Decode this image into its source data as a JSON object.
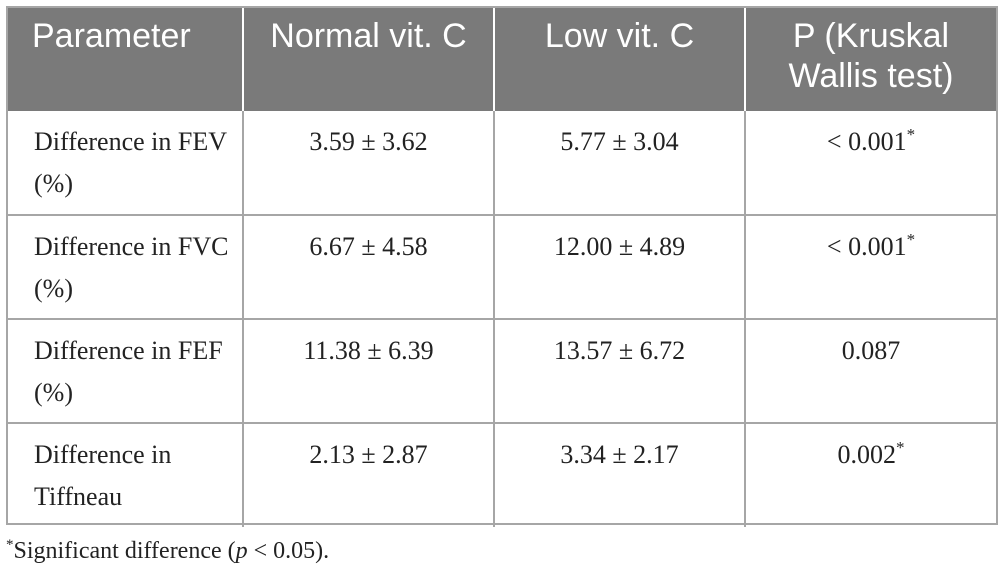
{
  "table": {
    "headers": [
      "Parameter",
      "Normal vit. C",
      "Low vit. C",
      "P (Kruskal Wallis test)"
    ],
    "rows": [
      {
        "parameter": "Difference in FEV (%)",
        "normal": "3.59 ± 3.62",
        "low": "5.77 ± 3.04",
        "p": "< 0.001",
        "p_mark": "*"
      },
      {
        "parameter": "Difference in FVC (%)",
        "normal": "6.67 ± 4.58",
        "low": "12.00 ± 4.89",
        "p": "< 0.001",
        "p_mark": "*"
      },
      {
        "parameter": "Difference in FEF (%)",
        "normal": "11.38 ± 6.39",
        "low": "13.57 ± 6.72",
        "p": "0.087",
        "p_mark": ""
      },
      {
        "parameter": "Difference in Tiffneau",
        "normal": "2.13 ± 2.87",
        "low": "3.34 ± 2.17",
        "p": "0.002",
        "p_mark": "*"
      }
    ]
  },
  "footnote": {
    "mark": "*",
    "text_before": "Significant difference (",
    "p_symbol": "p",
    "text_after": " < 0.05)."
  }
}
